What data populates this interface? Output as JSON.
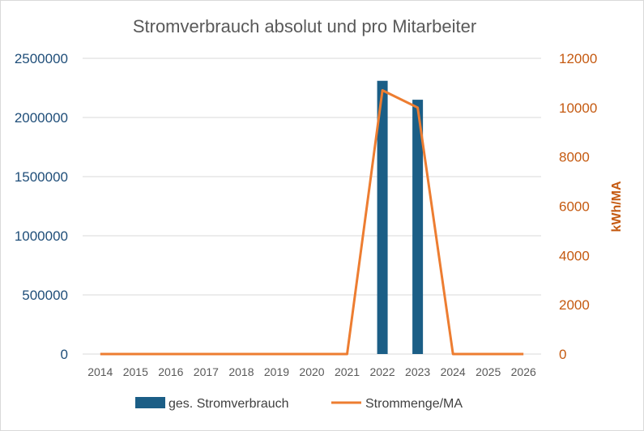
{
  "chart_data": {
    "type": "bar",
    "title": "Stromverbrauch absolut und pro Mitarbeiter",
    "categories": [
      "2014",
      "2015",
      "2016",
      "2017",
      "2018",
      "2019",
      "2020",
      "2021",
      "2022",
      "2023",
      "2024",
      "2025",
      "2026"
    ],
    "series": [
      {
        "name": "ges. Stromverbrauch",
        "type": "bar",
        "axis": "left",
        "color": "#1b5e86",
        "values": [
          0,
          0,
          0,
          0,
          0,
          0,
          0,
          0,
          2310000,
          2150000,
          0,
          0,
          0
        ]
      },
      {
        "name": "Strommenge/MA",
        "type": "line",
        "axis": "right",
        "color": "#ed7d31",
        "values": [
          0,
          0,
          0,
          0,
          0,
          0,
          0,
          0,
          10700,
          10000,
          0,
          0,
          0
        ]
      }
    ],
    "ylim_left": [
      0,
      2500000
    ],
    "yticks_left": [
      "0",
      "500000",
      "1000000",
      "1500000",
      "2000000",
      "2500000"
    ],
    "ylim_right": [
      0,
      12000
    ],
    "yticks_right": [
      "0",
      "2000",
      "4000",
      "6000",
      "8000",
      "10000",
      "12000"
    ],
    "ylabel_right": "kWh/MA",
    "grid": true,
    "legend": "bottom"
  }
}
